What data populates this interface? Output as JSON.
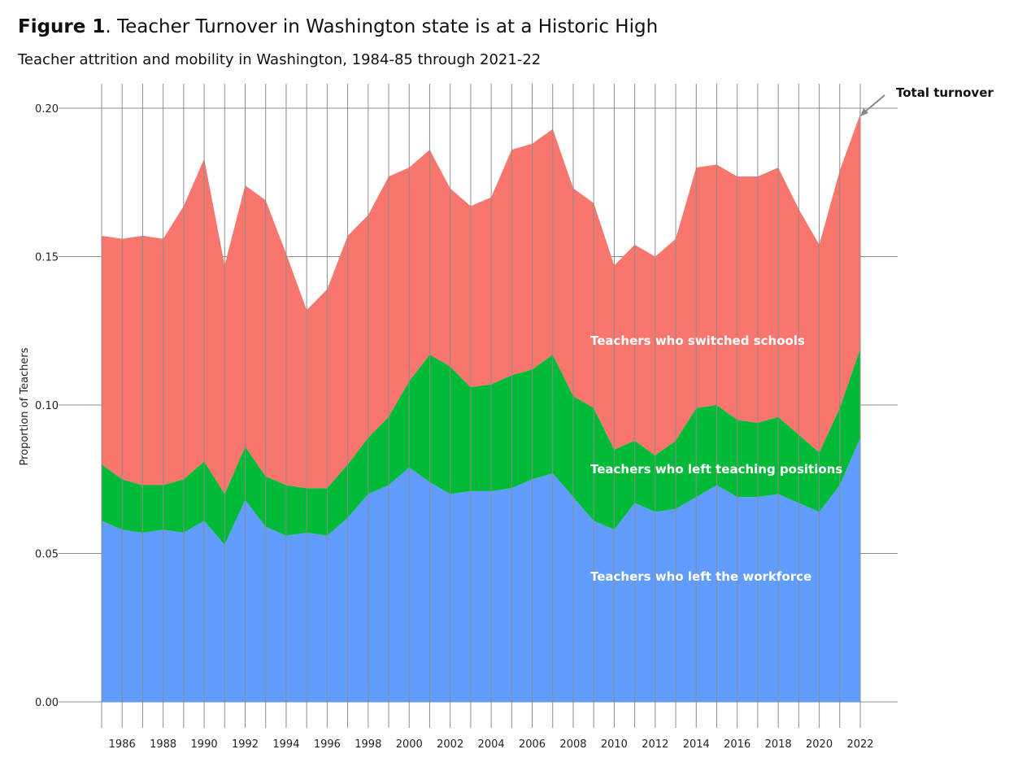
{
  "header": {
    "title_bold": "Figure 1",
    "title_rest": ". Teacher Turnover in Washington state is at a Historic High",
    "subtitle": "Teacher attrition and mobility in Washington, 1984-85 through 2021-22"
  },
  "chart_data": {
    "type": "area",
    "stacked": true,
    "ylabel": "Proportion  of  Teachers",
    "ylim": [
      0,
      0.2
    ],
    "yticks": [
      "0.00",
      "0.05",
      "0.10",
      "0.15",
      "0.20"
    ],
    "xlim": [
      1985,
      2022
    ],
    "xticks": [
      "1986",
      "1988",
      "1990",
      "1992",
      "1994",
      "1996",
      "1998",
      "2000",
      "2002",
      "2004",
      "2006",
      "2008",
      "2010",
      "2012",
      "2014",
      "2016",
      "2018",
      "2020",
      "2022"
    ],
    "grid": true,
    "x": [
      1985,
      1986,
      1987,
      1988,
      1989,
      1990,
      1991,
      1992,
      1993,
      1994,
      1995,
      1996,
      1997,
      1998,
      1999,
      2000,
      2001,
      2002,
      2003,
      2004,
      2005,
      2006,
      2007,
      2008,
      2009,
      2010,
      2011,
      2012,
      2013,
      2014,
      2015,
      2016,
      2017,
      2018,
      2019,
      2020,
      2021,
      2022
    ],
    "series": [
      {
        "name": "Teachers who left the workforce",
        "color": "#619cff",
        "values": [
          0.061,
          0.058,
          0.057,
          0.058,
          0.057,
          0.061,
          0.053,
          0.068,
          0.059,
          0.056,
          0.057,
          0.056,
          0.062,
          0.07,
          0.073,
          0.079,
          0.074,
          0.07,
          0.071,
          0.071,
          0.072,
          0.075,
          0.077,
          0.069,
          0.061,
          0.058,
          0.067,
          0.064,
          0.065,
          0.069,
          0.073,
          0.069,
          0.069,
          0.07,
          0.067,
          0.064,
          0.073,
          0.089
        ]
      },
      {
        "name": "Teachers who left teaching positions",
        "color": "#00ba38",
        "values": [
          0.019,
          0.017,
          0.016,
          0.015,
          0.018,
          0.02,
          0.017,
          0.018,
          0.017,
          0.017,
          0.015,
          0.016,
          0.018,
          0.019,
          0.023,
          0.029,
          0.043,
          0.043,
          0.035,
          0.036,
          0.038,
          0.037,
          0.04,
          0.034,
          0.038,
          0.027,
          0.021,
          0.019,
          0.023,
          0.03,
          0.027,
          0.026,
          0.025,
          0.026,
          0.023,
          0.02,
          0.026,
          0.03
        ]
      },
      {
        "name": "Teachers who switched schools",
        "color": "#f8766d",
        "values": [
          0.077,
          0.081,
          0.084,
          0.083,
          0.092,
          0.102,
          0.077,
          0.088,
          0.093,
          0.078,
          0.06,
          0.067,
          0.077,
          0.075,
          0.081,
          0.072,
          0.069,
          0.06,
          0.061,
          0.063,
          0.076,
          0.076,
          0.076,
          0.07,
          0.069,
          0.062,
          0.066,
          0.067,
          0.068,
          0.081,
          0.081,
          0.082,
          0.083,
          0.084,
          0.076,
          0.07,
          0.08,
          0.079
        ]
      }
    ],
    "annotations": {
      "total_label": "Total turnover"
    }
  }
}
